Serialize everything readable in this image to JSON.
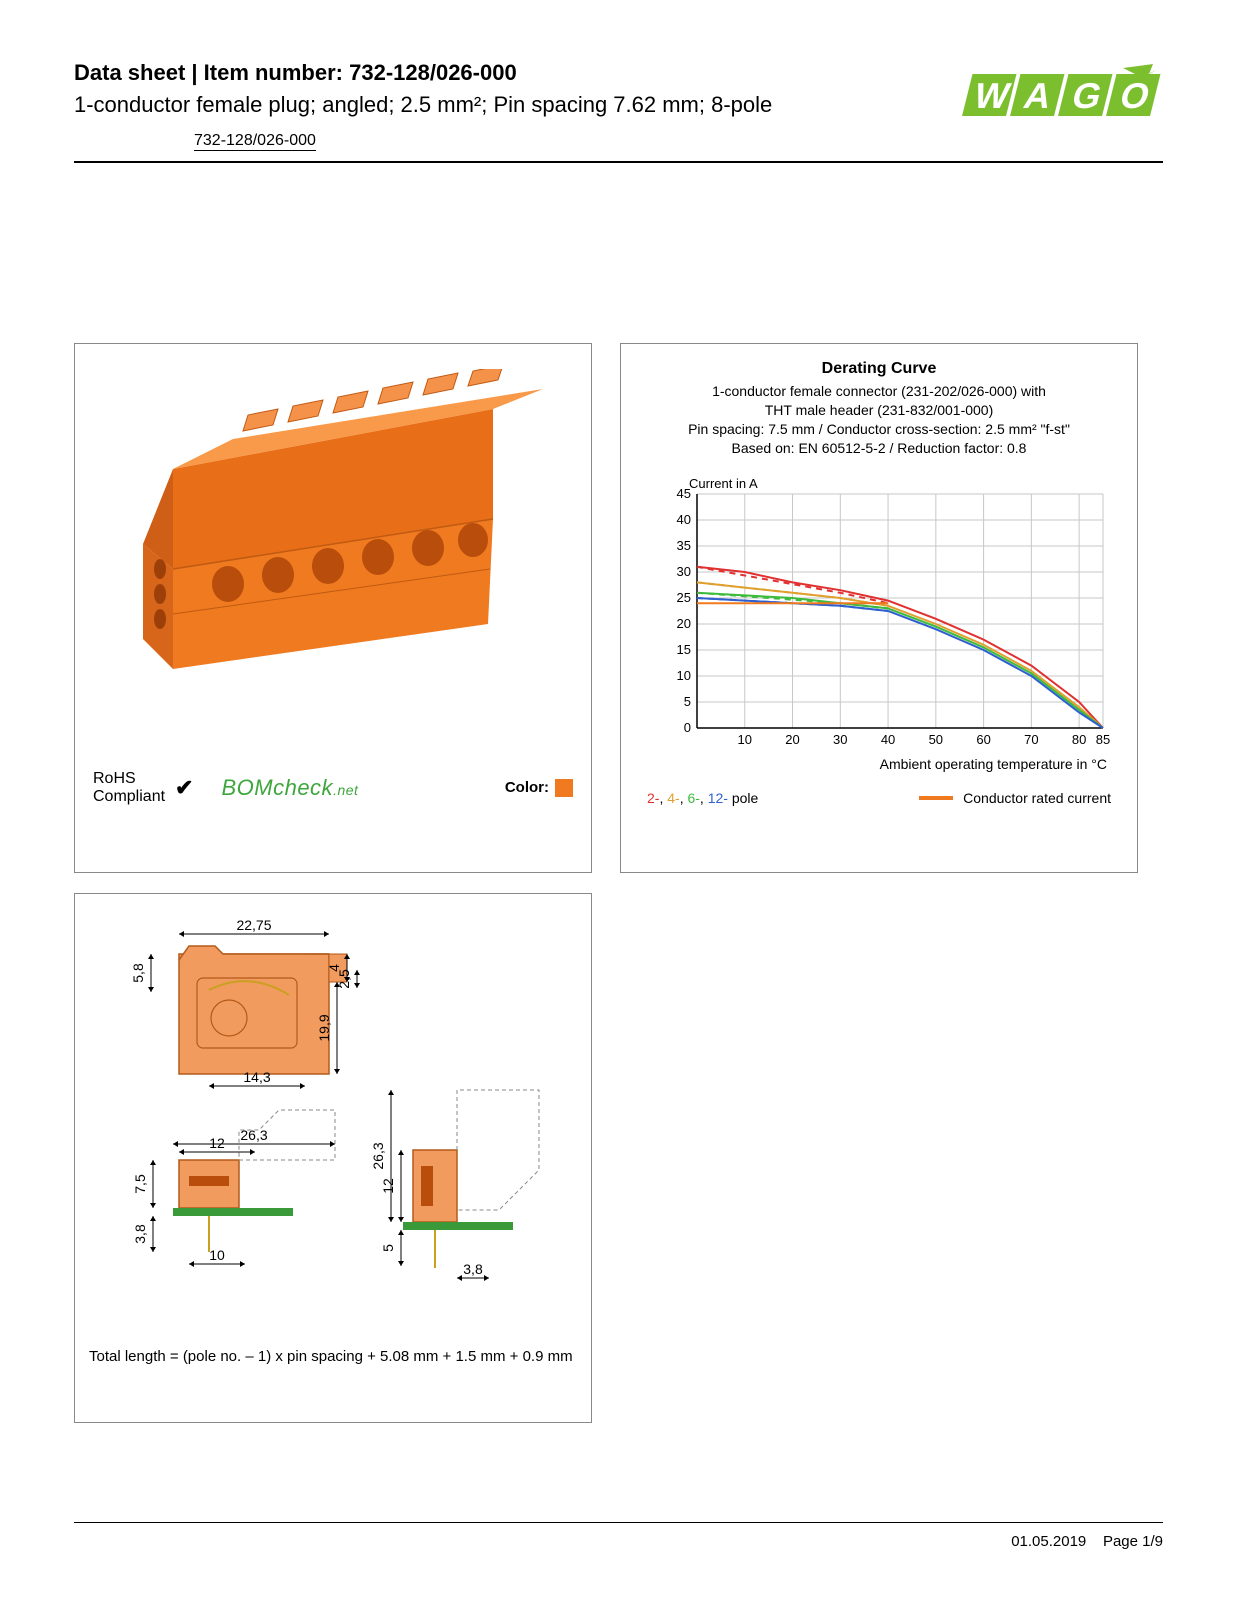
{
  "header": {
    "title": "Data sheet  |  Item number: 732-128/026-000",
    "subtitle": "1-conductor female plug; angled; 2.5 mm²; Pin spacing 7.62 mm; 8-pole",
    "item_link": "732-128/026-000"
  },
  "logo": {
    "text": "WAGO",
    "fill": "#7bbf2e",
    "shadow": "#5a8f1f"
  },
  "product_panel": {
    "product_color": "#f07a1f",
    "rohs_line1": "RoHS",
    "rohs_line2": "Compliant",
    "check": "✔",
    "bomcheck_main": "BOMcheck",
    "bomcheck_net": ".net",
    "color_label": "Color:",
    "color_swatch": "#f07a1f"
  },
  "chart": {
    "title": "Derating Curve",
    "sub_line1": "1-conductor female connector (231-202/026-000) with",
    "sub_line2": "THT male header (231-832/001-000)",
    "sub_line3_html": "Pin spacing: 7.5 mm / Conductor cross-section: 2.5 mm² \"f-st\"",
    "sub_line4": "Based on: EN 60512-5-2 / Reduction factor: 0.8",
    "y_label": "Current in A",
    "x_label": "Ambient operating temperature in °C",
    "grid_color": "#c7c7c7",
    "axis_color": "#000000",
    "bg": "#ffffff",
    "xlim": [
      0,
      85
    ],
    "ylim": [
      0,
      45
    ],
    "xticks": [
      10,
      20,
      30,
      40,
      50,
      60,
      70,
      80,
      85
    ],
    "yticks": [
      0,
      5,
      10,
      15,
      20,
      25,
      30,
      35,
      40,
      45
    ],
    "series": [
      {
        "name": "2-pole",
        "color": "#e03030",
        "dash": false,
        "data": [
          [
            0,
            31
          ],
          [
            10,
            30
          ],
          [
            20,
            28
          ],
          [
            30,
            26.5
          ],
          [
            40,
            24.5
          ],
          [
            50,
            21
          ],
          [
            60,
            17
          ],
          [
            70,
            12
          ],
          [
            80,
            5
          ],
          [
            85,
            0
          ]
        ]
      },
      {
        "name": "2-pole-dash",
        "color": "#e03030",
        "dash": true,
        "data": [
          [
            0,
            31
          ],
          [
            30,
            26
          ],
          [
            40,
            24
          ]
        ]
      },
      {
        "name": "4-pole",
        "color": "#e0a030",
        "dash": false,
        "data": [
          [
            0,
            28
          ],
          [
            10,
            27
          ],
          [
            20,
            26
          ],
          [
            30,
            25
          ],
          [
            40,
            23.5
          ],
          [
            50,
            20
          ],
          [
            60,
            16
          ],
          [
            70,
            11
          ],
          [
            80,
            4
          ],
          [
            85,
            0
          ]
        ]
      },
      {
        "name": "4-pole-dash",
        "color": "#e0a030",
        "dash": true,
        "data": [
          [
            0,
            28
          ],
          [
            30,
            25
          ],
          [
            40,
            23.5
          ]
        ]
      },
      {
        "name": "6-pole",
        "color": "#3dbb3d",
        "dash": false,
        "data": [
          [
            0,
            26
          ],
          [
            10,
            25.5
          ],
          [
            20,
            25
          ],
          [
            30,
            24
          ],
          [
            40,
            23
          ],
          [
            50,
            19.5
          ],
          [
            60,
            15.5
          ],
          [
            70,
            10.5
          ],
          [
            80,
            3.5
          ],
          [
            85,
            0
          ]
        ]
      },
      {
        "name": "6-pole-dash",
        "color": "#3dbb3d",
        "dash": true,
        "data": [
          [
            0,
            26
          ],
          [
            30,
            24
          ],
          [
            40,
            23
          ]
        ]
      },
      {
        "name": "12-pole",
        "color": "#2e5fd0",
        "dash": false,
        "data": [
          [
            0,
            25
          ],
          [
            10,
            24.5
          ],
          [
            20,
            24
          ],
          [
            30,
            23.5
          ],
          [
            40,
            22.5
          ],
          [
            50,
            19
          ],
          [
            60,
            15
          ],
          [
            70,
            10
          ],
          [
            80,
            3
          ],
          [
            85,
            0
          ]
        ]
      },
      {
        "name": "12-pole-dash",
        "color": "#2e5fd0",
        "dash": true,
        "data": [
          [
            0,
            25
          ],
          [
            30,
            23.5
          ],
          [
            40,
            22.5
          ]
        ]
      },
      {
        "name": "rated",
        "color": "#f07a1f",
        "dash": false,
        "data": [
          [
            0,
            24
          ],
          [
            40,
            24
          ]
        ]
      }
    ],
    "legend_poles": [
      {
        "label": "2-",
        "color": "#e03030"
      },
      {
        "label": "4-",
        "color": "#e0a030"
      },
      {
        "label": "6-",
        "color": "#3dbb3d"
      },
      {
        "label": "12-",
        "color": "#2e5fd0"
      }
    ],
    "legend_pole_suffix": " pole",
    "legend_rated_label": "Conductor rated current",
    "legend_rated_color": "#f07a1f"
  },
  "drawing": {
    "body_fill": "#f29b5e",
    "body_stroke": "#b35a1a",
    "pcb_color": "#3a9a3a",
    "dim_color": "#000000",
    "dims": {
      "w1": "22,75",
      "h_top": "4",
      "h1": "5,8",
      "h2": "2,5",
      "h3": "19,9",
      "w2": "14,3",
      "w3": "26,3",
      "w4": "12",
      "h4": "7,5",
      "h5": "3,8",
      "w5": "10",
      "h6": "26,3",
      "h7": "12",
      "h8": "5",
      "w6": "3,8"
    },
    "note": "Total length = (pole no. – 1) x pin spacing + 5.08 mm + 1.5 mm + 0.9 mm"
  },
  "footer": {
    "date": "01.05.2019",
    "page": "Page 1/9"
  }
}
